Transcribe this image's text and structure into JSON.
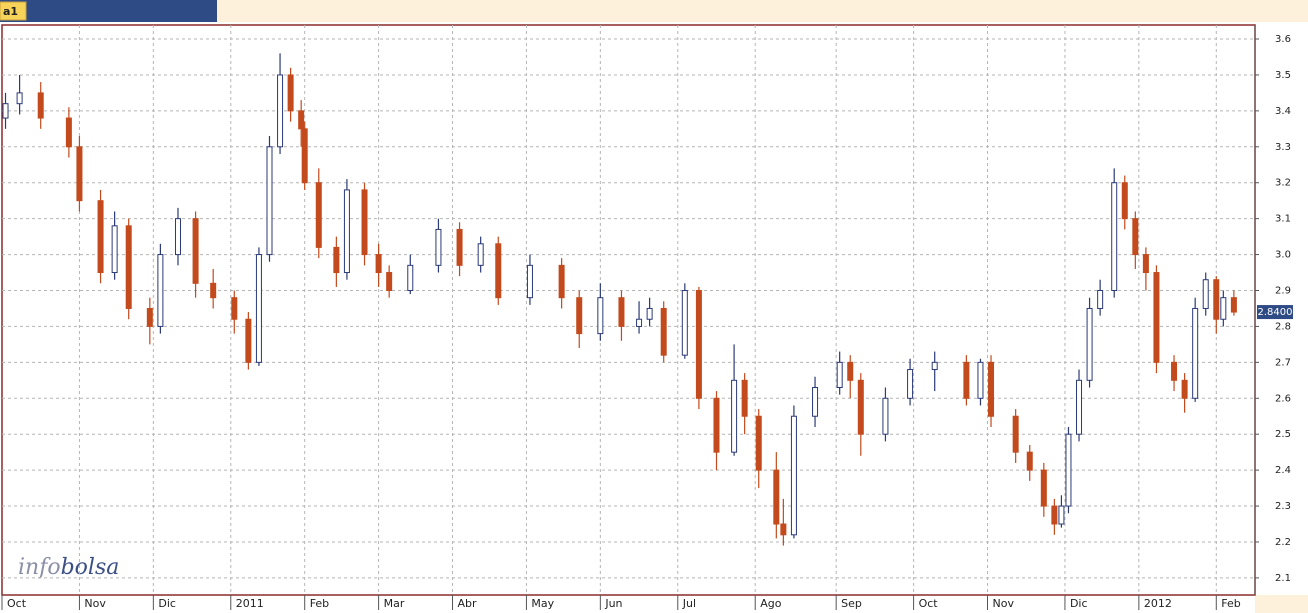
{
  "tab_label": "a1",
  "watermark_info": "info",
  "watermark_bolsa": "bolsa",
  "chart_data": {
    "type": "candlestick",
    "up_color": "#2b3a78",
    "down_color": "#c24a1c",
    "grid": true,
    "xlim": [
      0,
      356
    ],
    "xticks": [
      {
        "value": 0,
        "label": "Oct"
      },
      {
        "value": 22,
        "label": "Nov"
      },
      {
        "value": 43,
        "label": "Dic"
      },
      {
        "value": 65,
        "label": "2011"
      },
      {
        "value": 86,
        "label": "Feb"
      },
      {
        "value": 107,
        "label": "Mar"
      },
      {
        "value": 128,
        "label": "Abr"
      },
      {
        "value": 149,
        "label": "May"
      },
      {
        "value": 170,
        "label": "Jun"
      },
      {
        "value": 192,
        "label": "Jul"
      },
      {
        "value": 214,
        "label": "Ago"
      },
      {
        "value": 237,
        "label": "Sep"
      },
      {
        "value": 259,
        "label": "Oct"
      },
      {
        "value": 280,
        "label": "Nov"
      },
      {
        "value": 302,
        "label": "Dic"
      },
      {
        "value": 323,
        "label": "2012"
      },
      {
        "value": 345,
        "label": "Feb"
      }
    ],
    "ylim": [
      2.058,
      3.639
    ],
    "yticks": [
      2.1,
      2.2,
      2.3,
      2.4,
      2.5,
      2.6,
      2.7,
      2.8,
      2.9,
      {
        "value": 3,
        "label": "3.0"
      },
      3.1,
      3.2,
      3.3,
      3.4,
      3.5,
      3.6
    ],
    "last_price": {
      "value": 2.84,
      "label": "2.8400"
    },
    "x": [
      1,
      5,
      11,
      19,
      22,
      28,
      32,
      36,
      42,
      45,
      50,
      55,
      60,
      66,
      70,
      73,
      76,
      79,
      82,
      85,
      86,
      90,
      95,
      98,
      103,
      107,
      110,
      116,
      124,
      130,
      136,
      141,
      150,
      159,
      164,
      170,
      176,
      181,
      184,
      188,
      194,
      198,
      203,
      208,
      211,
      215,
      220,
      222,
      225,
      231,
      238,
      241,
      244,
      251,
      258,
      265,
      274,
      278,
      281,
      288,
      292,
      296,
      299,
      301,
      303,
      306,
      309,
      312,
      316,
      319,
      322,
      325,
      328,
      333,
      336,
      339,
      342,
      345,
      347,
      350
    ],
    "open": [
      3.38,
      3.42,
      3.45,
      3.38,
      3.3,
      3.15,
      2.95,
      3.08,
      2.85,
      2.8,
      3.0,
      3.1,
      2.92,
      2.88,
      2.82,
      2.7,
      3.0,
      3.3,
      3.5,
      3.4,
      3.35,
      3.2,
      3.02,
      2.95,
      3.18,
      3.0,
      2.95,
      2.9,
      2.97,
      3.07,
      2.97,
      3.03,
      2.88,
      2.97,
      2.88,
      2.78,
      2.88,
      2.8,
      2.82,
      2.85,
      2.72,
      2.9,
      2.6,
      2.45,
      2.65,
      2.55,
      2.4,
      2.25,
      2.22,
      2.55,
      2.63,
      2.7,
      2.65,
      2.5,
      2.6,
      2.68,
      2.7,
      2.6,
      2.7,
      2.55,
      2.45,
      2.4,
      2.3,
      2.25,
      2.3,
      2.5,
      2.65,
      2.85,
      2.9,
      3.2,
      3.1,
      3.0,
      2.95,
      2.7,
      2.65,
      2.6,
      2.85,
      2.93,
      2.82,
      2.88
    ],
    "high": [
      3.45,
      3.5,
      3.48,
      3.41,
      3.33,
      3.18,
      3.12,
      3.1,
      2.88,
      3.03,
      3.13,
      3.12,
      2.96,
      2.9,
      2.84,
      3.02,
      3.33,
      3.56,
      3.52,
      3.43,
      3.37,
      3.24,
      3.05,
      3.21,
      3.2,
      3.03,
      2.97,
      3.0,
      3.1,
      3.09,
      3.05,
      3.05,
      3.0,
      2.99,
      2.9,
      2.92,
      2.9,
      2.87,
      2.88,
      2.87,
      2.92,
      2.91,
      2.62,
      2.75,
      2.67,
      2.57,
      2.45,
      2.32,
      2.58,
      2.66,
      2.73,
      2.72,
      2.67,
      2.63,
      2.71,
      2.73,
      2.72,
      2.71,
      2.72,
      2.57,
      2.47,
      2.42,
      2.32,
      2.33,
      2.52,
      2.68,
      2.88,
      2.93,
      3.24,
      3.22,
      3.12,
      3.02,
      2.97,
      2.72,
      2.67,
      2.88,
      2.95,
      2.94,
      2.9,
      2.9
    ],
    "low": [
      3.35,
      3.39,
      3.35,
      3.27,
      3.12,
      2.92,
      2.93,
      2.82,
      2.75,
      2.78,
      2.97,
      2.88,
      2.85,
      2.78,
      2.68,
      2.69,
      2.98,
      3.28,
      3.37,
      3.3,
      3.18,
      2.99,
      2.91,
      2.93,
      2.97,
      2.91,
      2.88,
      2.89,
      2.95,
      2.94,
      2.95,
      2.86,
      2.86,
      2.85,
      2.74,
      2.76,
      2.76,
      2.78,
      2.8,
      2.7,
      2.71,
      2.57,
      2.4,
      2.44,
      2.5,
      2.35,
      2.21,
      2.19,
      2.21,
      2.52,
      2.61,
      2.6,
      2.44,
      2.48,
      2.58,
      2.62,
      2.58,
      2.58,
      2.52,
      2.42,
      2.37,
      2.27,
      2.22,
      2.24,
      2.28,
      2.48,
      2.63,
      2.83,
      2.88,
      3.07,
      2.96,
      2.9,
      2.67,
      2.62,
      2.56,
      2.59,
      2.83,
      2.78,
      2.8,
      2.83
    ],
    "close": [
      3.42,
      3.45,
      3.38,
      3.3,
      3.15,
      2.95,
      3.08,
      2.85,
      2.8,
      3.0,
      3.1,
      2.92,
      2.88,
      2.82,
      2.7,
      3.0,
      3.3,
      3.5,
      3.4,
      3.35,
      3.2,
      3.02,
      2.95,
      3.18,
      3.0,
      2.95,
      2.9,
      2.97,
      3.07,
      2.97,
      3.03,
      2.88,
      2.97,
      2.88,
      2.78,
      2.88,
      2.8,
      2.82,
      2.85,
      2.72,
      2.9,
      2.6,
      2.45,
      2.65,
      2.55,
      2.4,
      2.25,
      2.22,
      2.55,
      2.63,
      2.7,
      2.65,
      2.5,
      2.6,
      2.68,
      2.7,
      2.6,
      2.7,
      2.55,
      2.45,
      2.4,
      2.3,
      2.25,
      2.3,
      2.5,
      2.65,
      2.85,
      2.9,
      3.2,
      3.1,
      3.0,
      2.95,
      2.7,
      2.65,
      2.6,
      2.85,
      2.93,
      2.82,
      2.88,
      2.84
    ]
  }
}
